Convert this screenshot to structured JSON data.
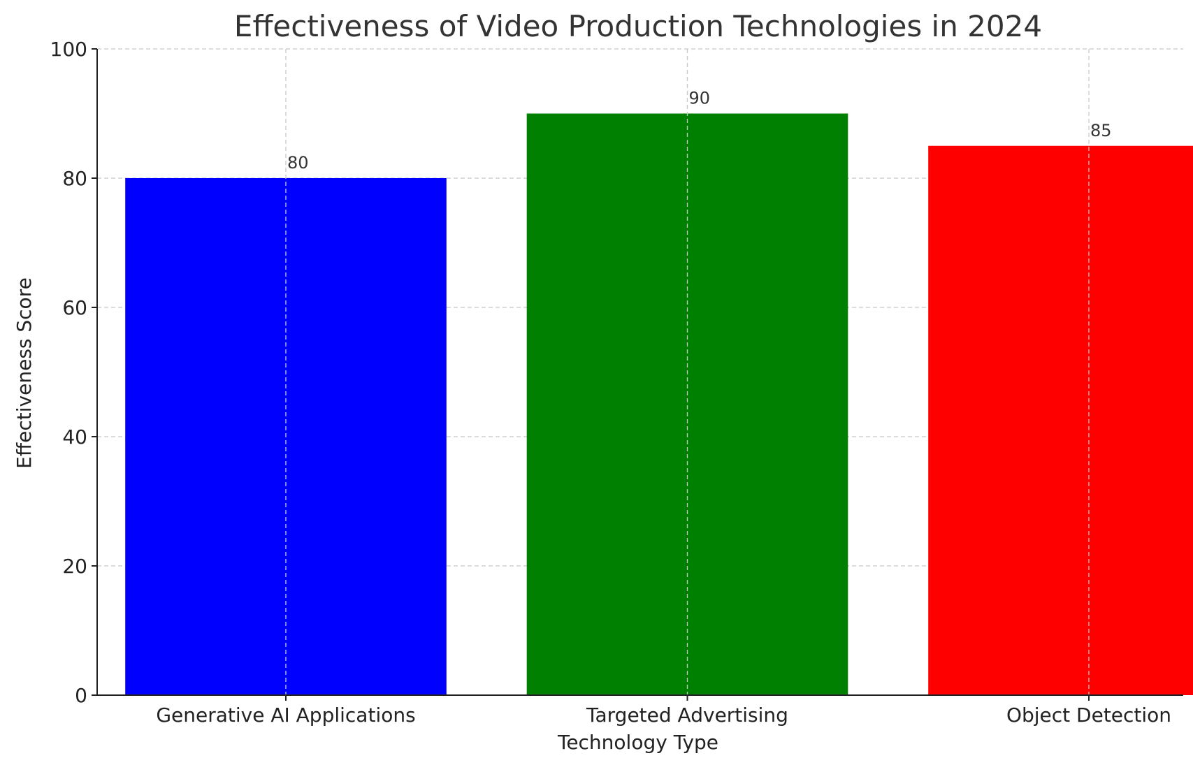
{
  "chart_data": {
    "type": "bar",
    "title": "Effectiveness of Video Production Technologies in 2024",
    "xlabel": "Technology Type",
    "ylabel": "Effectiveness Score",
    "categories": [
      "Generative AI Applications",
      "Targeted Advertising",
      "Object Detection"
    ],
    "values": [
      80,
      90,
      85
    ],
    "colors": [
      "#0000ff",
      "#008000",
      "#ff0000"
    ],
    "ylim": [
      0,
      100
    ],
    "yticks": [
      0,
      20,
      40,
      60,
      80,
      100
    ],
    "grid": true,
    "data_labels": [
      "80",
      "90",
      "85"
    ]
  }
}
